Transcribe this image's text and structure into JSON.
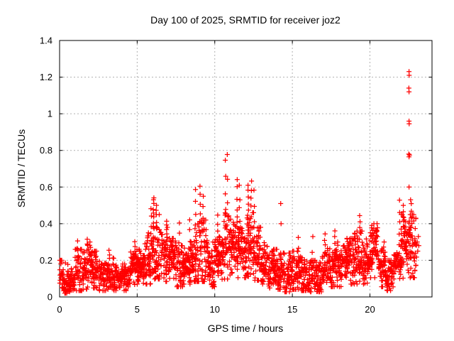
{
  "colors": {
    "marker": "#ff0000",
    "grid": "#b0b0b0",
    "border": "#000000",
    "text": "#000000",
    "background": "#ffffff"
  },
  "chart_data": {
    "type": "scatter",
    "title": "Day 100 of 2025, SRMTID for receiver joz2",
    "xlabel": "GPS time / hours",
    "ylabel": "SRMTID / TECUs",
    "xlim": [
      0,
      24
    ],
    "ylim": [
      0,
      1.4
    ],
    "x_ticks": [
      0,
      5,
      10,
      15,
      20
    ],
    "y_ticks": [
      0,
      0.2,
      0.4,
      0.6,
      0.8,
      1,
      1.2,
      1.4
    ],
    "grid": true,
    "legend": "none",
    "marker": "plus",
    "series_name": "SRMTID",
    "time_span_hours": [
      0,
      23.2
    ],
    "bin_width": 0.5,
    "bins": [
      [
        0.0,
        0.03,
        0.2
      ],
      [
        0.5,
        0.04,
        0.18
      ],
      [
        1.0,
        0.05,
        0.26
      ],
      [
        1.5,
        0.06,
        0.3
      ],
      [
        2.0,
        0.07,
        0.25
      ],
      [
        2.5,
        0.05,
        0.2
      ],
      [
        3.0,
        0.06,
        0.24
      ],
      [
        3.5,
        0.05,
        0.18
      ],
      [
        4.0,
        0.05,
        0.18
      ],
      [
        4.5,
        0.07,
        0.26
      ],
      [
        5.0,
        0.09,
        0.26
      ],
      [
        5.5,
        0.1,
        0.35
      ],
      [
        6.0,
        0.14,
        0.45
      ],
      [
        6.5,
        0.12,
        0.38
      ],
      [
        7.0,
        0.12,
        0.32
      ],
      [
        7.5,
        0.08,
        0.28
      ],
      [
        8.0,
        0.1,
        0.3
      ],
      [
        8.5,
        0.12,
        0.4
      ],
      [
        9.0,
        0.12,
        0.42
      ],
      [
        9.5,
        0.08,
        0.3
      ],
      [
        10.0,
        0.12,
        0.36
      ],
      [
        10.5,
        0.14,
        0.46
      ],
      [
        11.0,
        0.15,
        0.44
      ],
      [
        11.5,
        0.15,
        0.42
      ],
      [
        12.0,
        0.16,
        0.46
      ],
      [
        12.5,
        0.13,
        0.38
      ],
      [
        13.0,
        0.1,
        0.3
      ],
      [
        13.5,
        0.07,
        0.26
      ],
      [
        14.0,
        0.06,
        0.24
      ],
      [
        14.5,
        0.04,
        0.24
      ],
      [
        15.0,
        0.06,
        0.25
      ],
      [
        15.5,
        0.05,
        0.22
      ],
      [
        16.0,
        0.04,
        0.2
      ],
      [
        16.5,
        0.04,
        0.22
      ],
      [
        17.0,
        0.06,
        0.28
      ],
      [
        17.5,
        0.08,
        0.3
      ],
      [
        18.0,
        0.08,
        0.28
      ],
      [
        18.5,
        0.1,
        0.32
      ],
      [
        19.0,
        0.1,
        0.36
      ],
      [
        19.5,
        0.1,
        0.32
      ],
      [
        20.0,
        0.15,
        0.4
      ],
      [
        20.5,
        0.08,
        0.3
      ],
      [
        21.0,
        0.05,
        0.2
      ],
      [
        21.5,
        0.08,
        0.27
      ],
      [
        22.0,
        0.12,
        0.45
      ],
      [
        22.5,
        0.15,
        0.45
      ]
    ],
    "spikes": [
      [
        1.15,
        0.3,
        4
      ],
      [
        1.8,
        0.31,
        4
      ],
      [
        3.2,
        0.26,
        3
      ],
      [
        4.85,
        0.3,
        4
      ],
      [
        5.9,
        0.48,
        5
      ],
      [
        6.05,
        0.55,
        8
      ],
      [
        6.25,
        0.5,
        5
      ],
      [
        6.9,
        0.42,
        5
      ],
      [
        7.7,
        0.4,
        4
      ],
      [
        8.4,
        0.42,
        4
      ],
      [
        8.75,
        0.58,
        5
      ],
      [
        9.05,
        0.6,
        6
      ],
      [
        9.25,
        0.55,
        4
      ],
      [
        10.2,
        0.45,
        4
      ],
      [
        10.7,
        0.74,
        5
      ],
      [
        10.8,
        0.77,
        4
      ],
      [
        11.45,
        0.65,
        6
      ],
      [
        11.6,
        0.6,
        5
      ],
      [
        12.15,
        0.62,
        7
      ],
      [
        12.35,
        0.64,
        6
      ],
      [
        12.55,
        0.58,
        4
      ],
      [
        15.4,
        0.33,
        3
      ],
      [
        16.3,
        0.32,
        3
      ],
      [
        17.1,
        0.35,
        4
      ],
      [
        17.75,
        0.37,
        4
      ],
      [
        19.35,
        0.45,
        5
      ],
      [
        20.1,
        0.4,
        3
      ],
      [
        21.9,
        0.52,
        6
      ],
      [
        22.15,
        0.5,
        5
      ],
      [
        22.65,
        0.5,
        4
      ]
    ],
    "outliers": [
      [
        22.52,
        1.23
      ],
      [
        22.53,
        1.21
      ],
      [
        22.51,
        1.14
      ],
      [
        22.52,
        1.12
      ],
      [
        22.52,
        0.96
      ],
      [
        22.53,
        0.945
      ],
      [
        22.5,
        0.78
      ],
      [
        22.55,
        0.775
      ],
      [
        22.52,
        0.765
      ],
      [
        22.52,
        0.6
      ],
      [
        22.62,
        0.53
      ],
      [
        14.25,
        0.51
      ],
      [
        14.27,
        0.4
      ],
      [
        23.05,
        0.3
      ],
      [
        23.08,
        0.25
      ],
      [
        23.12,
        0.33
      ],
      [
        23.15,
        0.28
      ]
    ]
  }
}
